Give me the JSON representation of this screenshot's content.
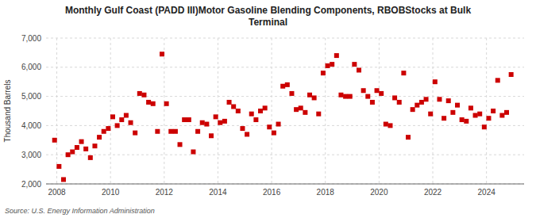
{
  "chart_data": {
    "type": "scatter",
    "title": "Monthly Gulf Coast (PADD III)Motor Gasoline Blending Components, RBOBStocks at Bulk\nTerminal",
    "ylabel": "Thousand Barrels",
    "source": "Source: U.S. Energy Information Administration",
    "color": "#cc0000",
    "marker": "square",
    "grid": true,
    "xlim": [
      2007.6,
      2025.4
    ],
    "xticks": [
      2008,
      2010,
      2012,
      2014,
      2016,
      2018,
      2020,
      2022,
      2024
    ],
    "ylim": [
      2000,
      7000
    ],
    "yticks": [
      {
        "value": 2000,
        "label": "2,000"
      },
      {
        "value": 3000,
        "label": "3,000"
      },
      {
        "value": 4000,
        "label": "4,000"
      },
      {
        "value": 5000,
        "label": "5,000"
      },
      {
        "value": 6000,
        "label": "6,000"
      },
      {
        "value": 7000,
        "label": "7,000"
      }
    ],
    "x": [
      2007.917,
      2008.083,
      2008.25,
      2008.417,
      2008.583,
      2008.75,
      2008.917,
      2009.083,
      2009.25,
      2009.417,
      2009.583,
      2009.75,
      2009.917,
      2010.083,
      2010.25,
      2010.417,
      2010.583,
      2010.75,
      2010.917,
      2011.083,
      2011.25,
      2011.417,
      2011.583,
      2011.75,
      2011.917,
      2012.083,
      2012.25,
      2012.417,
      2012.583,
      2012.75,
      2012.917,
      2013.083,
      2013.25,
      2013.417,
      2013.583,
      2013.75,
      2013.917,
      2014.083,
      2014.25,
      2014.417,
      2014.583,
      2014.75,
      2014.917,
      2015.083,
      2015.25,
      2015.417,
      2015.583,
      2015.75,
      2015.917,
      2016.083,
      2016.25,
      2016.417,
      2016.583,
      2016.75,
      2016.917,
      2017.083,
      2017.25,
      2017.417,
      2017.583,
      2017.75,
      2017.917,
      2018.083,
      2018.25,
      2018.417,
      2018.583,
      2018.75,
      2018.917,
      2019.083,
      2019.25,
      2019.417,
      2019.583,
      2019.75,
      2019.917,
      2020.083,
      2020.25,
      2020.417,
      2020.583,
      2020.75,
      2020.917,
      2021.083,
      2021.25,
      2021.417,
      2021.583,
      2021.75,
      2021.917,
      2022.083,
      2022.25,
      2022.417,
      2022.583,
      2022.75,
      2022.917,
      2023.083,
      2023.25,
      2023.417,
      2023.583,
      2023.75,
      2023.917,
      2024.083,
      2024.25,
      2024.417,
      2024.583,
      2024.75,
      2024.917
    ],
    "values": [
      3500,
      2600,
      2150,
      3000,
      3100,
      3250,
      3450,
      3200,
      2900,
      3300,
      3600,
      3800,
      3900,
      4300,
      4000,
      4200,
      4350,
      4100,
      3750,
      5100,
      5050,
      4800,
      4750,
      3800,
      6450,
      4750,
      3800,
      3800,
      3350,
      4200,
      4200,
      3100,
      3800,
      4100,
      4050,
      3650,
      4300,
      4100,
      4150,
      4800,
      4650,
      4500,
      3900,
      3700,
      4400,
      4200,
      4500,
      4600,
      3950,
      3750,
      4050,
      5350,
      5400,
      5100,
      4550,
      4600,
      4450,
      5050,
      4950,
      4400,
      5800,
      6050,
      6100,
      6400,
      5050,
      5000,
      5000,
      6100,
      5900,
      5200,
      5000,
      4800,
      5200,
      5100,
      4050,
      4000,
      4950,
      4800,
      5800,
      3600,
      4550,
      4700,
      4800,
      4900,
      4400,
      5500,
      4900,
      4250,
      4850,
      4450,
      4700,
      4200,
      4150,
      4600,
      4350,
      4400,
      3950,
      4250,
      4500,
      5550,
      4350,
      4450,
      5750
    ]
  }
}
